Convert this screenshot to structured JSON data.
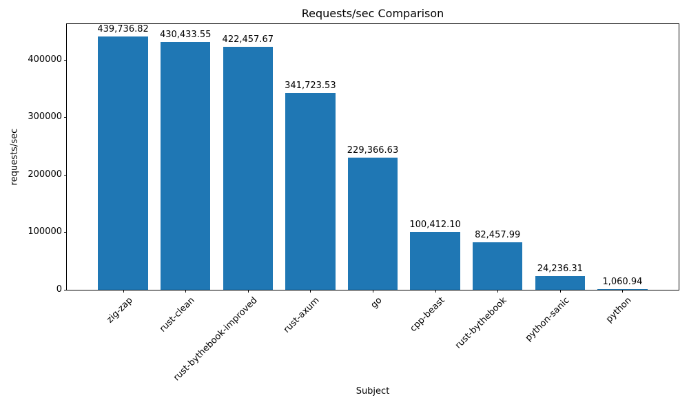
{
  "chart_data": {
    "type": "bar",
    "title": "Requests/sec Comparison",
    "xlabel": "Subject",
    "ylabel": "requests/sec",
    "categories": [
      "zig-zap",
      "rust-clean",
      "rust-bythebook-improved",
      "rust-axum",
      "go",
      "cpp-beast",
      "rust-bythebook",
      "python-sanic",
      "python"
    ],
    "values": [
      439736.82,
      430433.55,
      422457.67,
      341723.53,
      229366.63,
      100412.1,
      82457.99,
      24236.31,
      1060.94
    ],
    "value_labels": [
      "439,736.82",
      "430,433.55",
      "422,457.67",
      "341,723.53",
      "229,366.63",
      "100,412.10",
      "82,457.99",
      "24,236.31",
      "1,060.94"
    ],
    "y_ticks": [
      0,
      100000,
      200000,
      300000,
      400000
    ],
    "y_tick_labels": [
      "0",
      "100000",
      "200000",
      "300000",
      "400000"
    ],
    "ylim": [
      0,
      461723.66
    ],
    "bar_color": "#1f77b4",
    "grid": false,
    "legend": null
  }
}
